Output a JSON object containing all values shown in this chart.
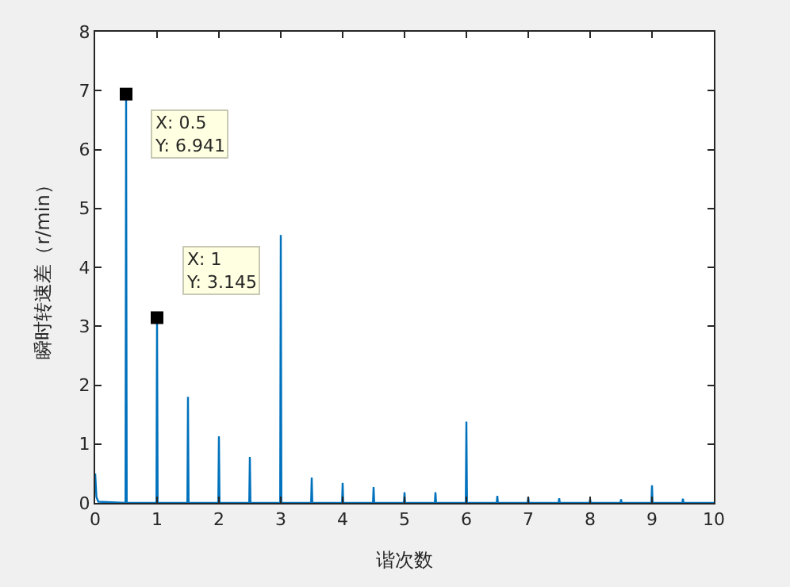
{
  "chart_data": {
    "type": "line",
    "xlabel": "谐次数",
    "ylabel": "瞬时转速差（r/min）",
    "x": [
      0,
      0.02,
      0.05,
      0.49,
      0.5,
      0.51,
      0.99,
      1,
      1.01,
      1.49,
      1.5,
      1.51,
      1.99,
      2,
      2.01,
      2.49,
      2.5,
      2.51,
      2.99,
      3,
      3.01,
      3.49,
      3.5,
      3.51,
      3.99,
      4,
      4.01,
      4.49,
      4.5,
      4.51,
      4.99,
      5,
      5.01,
      5.49,
      5.5,
      5.51,
      5.99,
      6,
      6.01,
      6.49,
      6.5,
      6.51,
      6.99,
      7,
      7.01,
      7.49,
      7.5,
      7.51,
      7.99,
      8,
      8.01,
      8.49,
      8.5,
      8.51,
      8.99,
      9,
      9.01,
      9.49,
      9.5,
      9.51,
      10
    ],
    "series": [
      {
        "color": "#0072bd",
        "values": [
          0.5,
          0.1,
          0.02,
          0,
          6.941,
          0,
          0,
          3.145,
          0,
          0,
          1.8,
          0,
          0,
          1.13,
          0,
          0,
          0.78,
          0,
          0,
          4.55,
          0,
          0,
          0.43,
          0,
          0,
          0.34,
          0,
          0,
          0.27,
          0,
          0,
          0.18,
          0,
          0,
          0.18,
          0,
          0,
          1.38,
          0,
          0,
          0.12,
          0,
          0,
          0.1,
          0,
          0,
          0.08,
          0,
          0,
          0.06,
          0,
          0,
          0.06,
          0,
          0,
          0.3,
          0,
          0,
          0.07,
          0,
          0
        ]
      }
    ],
    "xlim": [
      0,
      10
    ],
    "xticks": [
      0,
      1,
      2,
      3,
      4,
      5,
      6,
      7,
      8,
      9,
      10
    ],
    "ylim": [
      0,
      8
    ],
    "yticks": [
      0,
      1,
      2,
      3,
      4,
      5,
      6,
      7,
      8
    ],
    "annotations": [
      {
        "text": "X: 0.5\nY: 6.941",
        "x": 0.5,
        "y": 6.941
      },
      {
        "text": "X: 1\nY: 3.145",
        "x": 1,
        "y": 3.145
      }
    ],
    "grid": false,
    "marker": "none",
    "line_style": "solid"
  }
}
